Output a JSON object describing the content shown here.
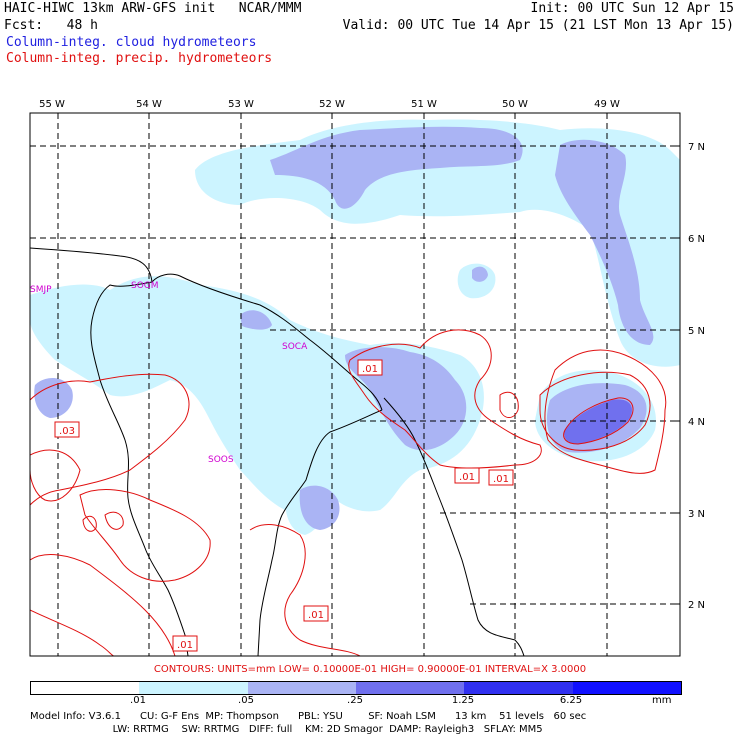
{
  "header": {
    "line1_left": "HAIC-HIWC 13km ARW-GFS init   NCAR/MMM",
    "line1_right": "Init: 00 UTC Sun 12 Apr 15",
    "line2_left": "Fcst:   48 h",
    "line2_right": "Valid: 00 UTC Tue 14 Apr 15 (21 LST Mon 13 Apr 15)",
    "field1": "Column-integ. cloud hydrometeors",
    "field2": "Column-integ. precip. hydrometeors"
  },
  "map": {
    "lon_labels": [
      "55 W",
      "54 W",
      "53 W",
      "52 W",
      "51 W",
      "50 W",
      "49 W"
    ],
    "lat_labels": [
      "7 N",
      "6 N",
      "5 N",
      "4 N",
      "3 N",
      "2 N"
    ],
    "stations": [
      "SMJP",
      "SOGM",
      "SOCA",
      "SOOS"
    ],
    "contour_labels": [
      ".01",
      ".03",
      ".01",
      ".01",
      ".01",
      ".01"
    ]
  },
  "contours_info": "CONTOURS:  UNITS=mm   LOW= 0.10000E-01   HIGH= 0.90000E-01   INTERVAL=X  3.0000",
  "colorbar": {
    "ticks": [
      ".01",
      ".05",
      ".25",
      "1.25",
      "6.25"
    ],
    "units": "mm",
    "colors": [
      "#ffffff",
      "#ccf4ff",
      "#aab4f4",
      "#7070ee",
      "#3030f0"
    ]
  },
  "footer": {
    "line1": "Model Info: V3.6.1      CU: G-F Ens  MP: Thompson      PBL: YSU        SF: Noah LSM      13 km    51 levels   60 sec",
    "line2": "                          LW: RRTMG    SW: RRTMG   DIFF: full    KM: 2D Smagor  DAMP: Rayleigh3   SFLAY: MM5"
  }
}
